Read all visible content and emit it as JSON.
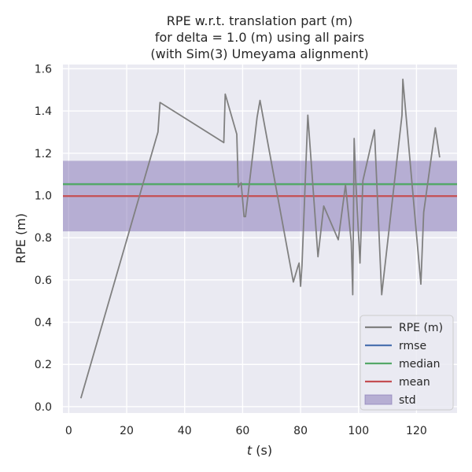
{
  "chart_data": {
    "type": "line",
    "title_lines": [
      "RPE w.r.t. translation part (m)",
      "for delta = 1.0 (m) using all pairs",
      "(with Sim(3) Umeyama alignment)"
    ],
    "xlabel_var": "t",
    "xlabel_unit": " (s)",
    "ylabel": "RPE (m)",
    "xlim": [
      -2,
      134
    ],
    "ylim": [
      -0.03,
      1.62
    ],
    "xticks": [
      0,
      20,
      40,
      60,
      80,
      100,
      120
    ],
    "yticks": [
      0.0,
      0.2,
      0.4,
      0.6,
      0.8,
      1.0,
      1.2,
      1.4,
      1.6
    ],
    "ytick_labels": [
      "0.0",
      "0.2",
      "0.4",
      "0.6",
      "0.8",
      "1.0",
      "1.2",
      "1.4",
      "1.6"
    ],
    "grid": true,
    "legend_position": "lower-right",
    "series": [
      {
        "name": "RPE (m)",
        "color": "#808080",
        "x": [
          4.2,
          30.8,
          31.5,
          53.5,
          54.0,
          58.0,
          58.5,
          59.5,
          60.5,
          61.0,
          65.0,
          66.0,
          77.5,
          79.0,
          79.5,
          80.0,
          80.5,
          82.5,
          86.0,
          88.0,
          93.0,
          95.5,
          97.5,
          98.0,
          98.5,
          99.0,
          100.5,
          101.5,
          105.5,
          108.0,
          115.0,
          115.3,
          121.5,
          122.5,
          126.5,
          128.0
        ],
        "y": [
          0.04,
          1.3,
          1.44,
          1.25,
          1.48,
          1.29,
          1.04,
          1.06,
          0.9,
          0.9,
          1.37,
          1.45,
          0.59,
          0.66,
          0.68,
          0.57,
          0.67,
          1.38,
          0.71,
          0.95,
          0.79,
          1.05,
          0.78,
          0.53,
          1.27,
          1.08,
          0.68,
          1.07,
          1.31,
          0.53,
          1.38,
          1.55,
          0.58,
          0.92,
          1.32,
          1.18
        ]
      }
    ],
    "rmse": 1.054,
    "median": 1.053,
    "mean": 0.997,
    "std": 0.167,
    "legend": [
      {
        "label": "RPE (m)",
        "kind": "line",
        "color": "#808080"
      },
      {
        "label": "rmse",
        "kind": "line",
        "color": "#4c72b0"
      },
      {
        "label": "median",
        "kind": "line",
        "color": "#55a868"
      },
      {
        "label": "mean",
        "kind": "line",
        "color": "#c44e52"
      },
      {
        "label": "std",
        "kind": "patch",
        "color": "#8172b3"
      }
    ],
    "colors": {
      "plot_bg": "#eaeaf2",
      "grid": "#ffffff",
      "rmse": "#4c72b0",
      "median": "#55a868",
      "mean": "#c44e52",
      "std": "#8172b3"
    }
  }
}
